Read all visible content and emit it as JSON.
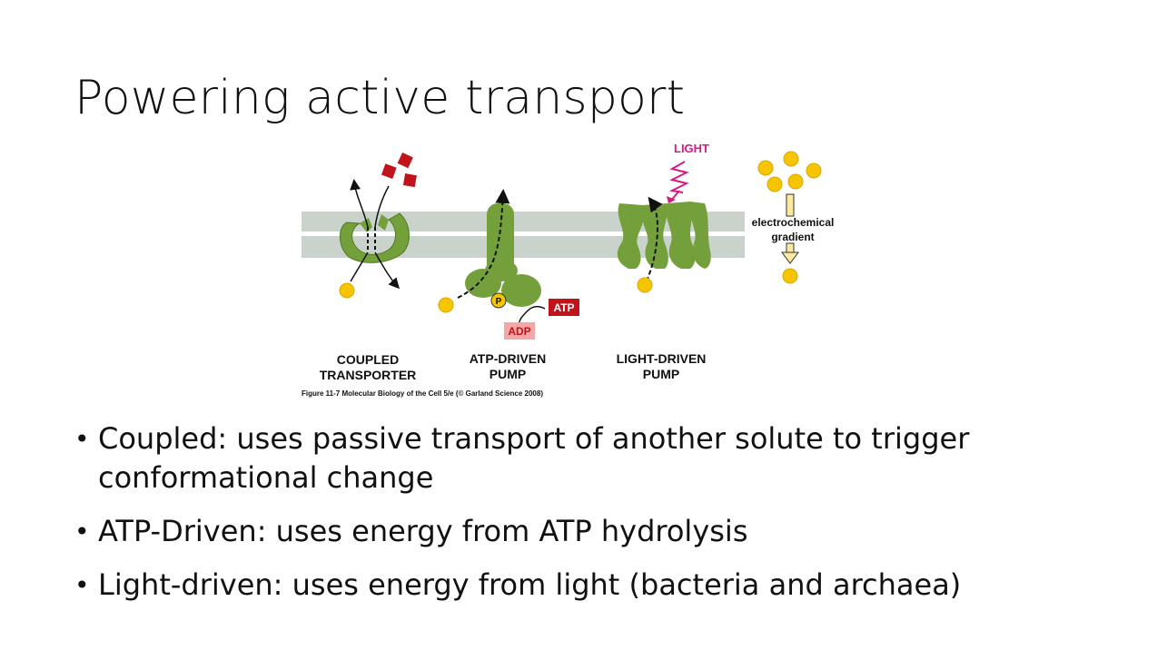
{
  "slide": {
    "title": "Powering active transport"
  },
  "figure": {
    "panels": {
      "coupled": "COUPLED\nTRANSPORTER",
      "coupled_line1": "COUPLED",
      "coupled_line2": "TRANSPORTER",
      "atp_line1": "ATP-DRIVEN",
      "atp_line2": "PUMP",
      "light_line1": "LIGHT-DRIVEN",
      "light_line2": "PUMP"
    },
    "labels": {
      "light": "LIGHT",
      "atp": "ATP",
      "adp": "ADP",
      "phosphate": "P",
      "gradient_line1": "electrochemical",
      "gradient_line2": "gradient"
    },
    "caption": "Figure 11-7  Molecular Biology of the Cell 5/e (© Garland Science 2008)",
    "colors": {
      "membrane": "#c9d3cc",
      "protein": "#74a03c",
      "protein_dark": "#4f7a25",
      "solute_yellow": "#f6c500",
      "solute_red": "#c0141a",
      "atp_red": "#c0141a",
      "adp_pink": "#f3a7a7",
      "light_magenta": "#d61a84"
    }
  },
  "bullets": [
    {
      "text": "Coupled: uses passive transport of another solute to trigger conformational change",
      "line1": "Coupled: uses passive transport of another solute to trigger",
      "line2": "conformational change"
    },
    {
      "text": "ATP-Driven: uses energy from ATP hydrolysis"
    },
    {
      "text": "Light-driven: uses energy from light (bacteria and archaea)"
    }
  ]
}
